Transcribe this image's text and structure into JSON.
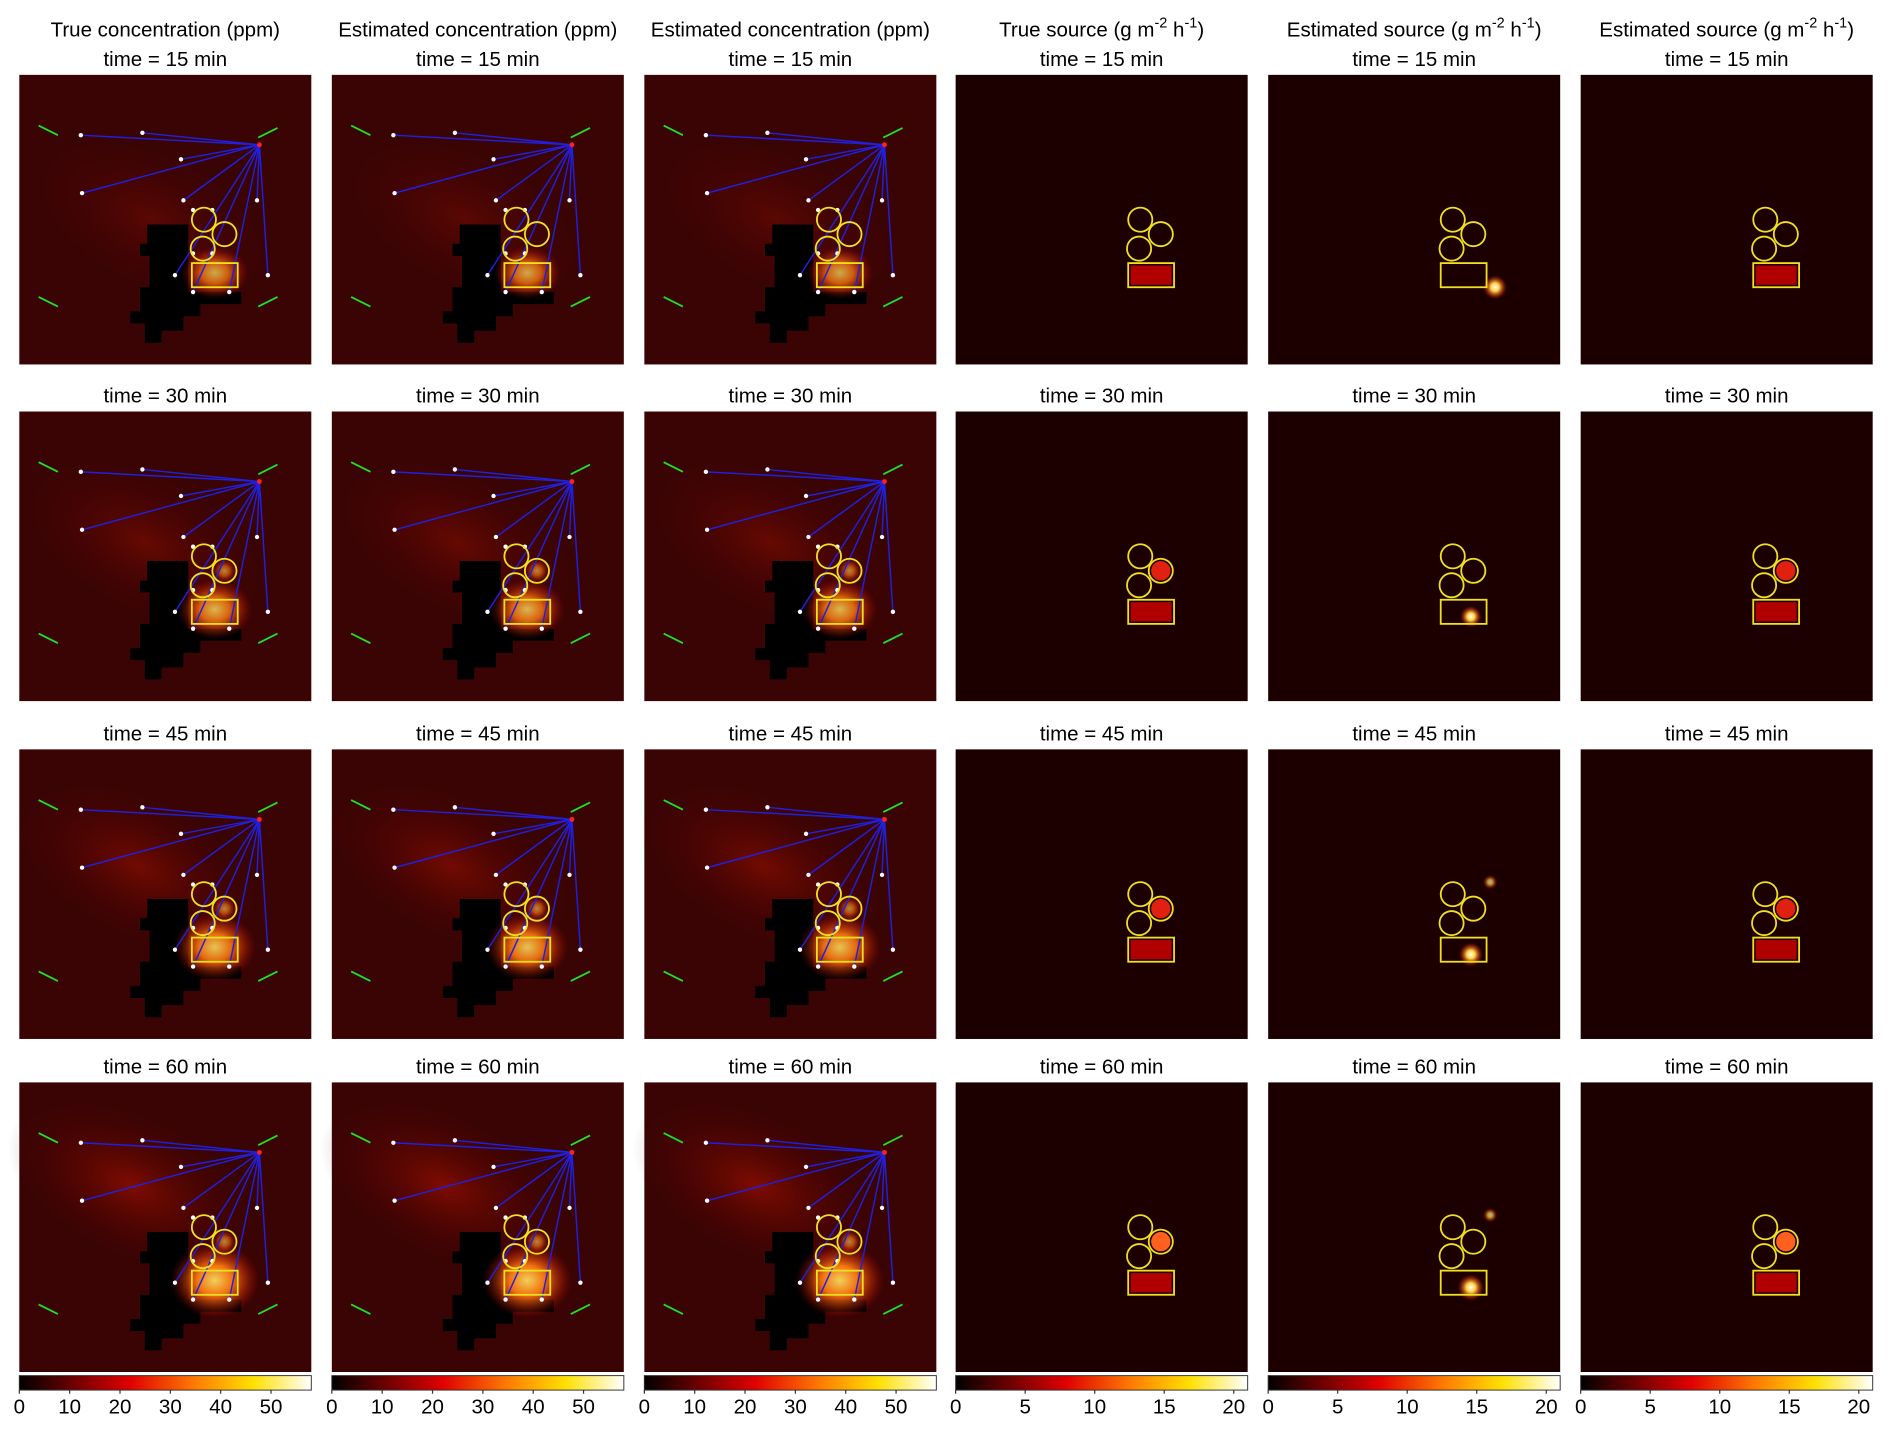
{
  "columns": [
    {
      "title": [
        "True concentration (ppm)"
      ],
      "colorbar": {
        "lim": [
          0,
          58
        ],
        "ticks": [
          0,
          10,
          20,
          30,
          40,
          50
        ]
      }
    },
    {
      "title": [
        "Estimated concentration (ppm)"
      ],
      "colorbar": {
        "lim": [
          0,
          58
        ],
        "ticks": [
          0,
          10,
          20,
          30,
          40,
          50
        ]
      }
    },
    {
      "title": [
        "Estimated concentration (ppm)"
      ],
      "colorbar": {
        "lim": [
          0,
          58
        ],
        "ticks": [
          0,
          10,
          20,
          30,
          40,
          50
        ]
      }
    },
    {
      "title": [
        "True source (g m",
        {
          "sup": "-2"
        },
        " h",
        {
          "sup": "-1"
        },
        ")"
      ],
      "colorbar": {
        "lim": [
          0,
          21
        ],
        "ticks": [
          0,
          5,
          10,
          15,
          20
        ]
      }
    },
    {
      "title": [
        "Estimated source (g m",
        {
          "sup": "-2"
        },
        " h",
        {
          "sup": "-1"
        },
        ")"
      ],
      "colorbar": {
        "lim": [
          0,
          21
        ],
        "ticks": [
          0,
          5,
          10,
          15,
          20
        ]
      }
    },
    {
      "title": [
        "Estimated source (g m",
        {
          "sup": "-2"
        },
        " h",
        {
          "sup": "-1"
        },
        ")"
      ],
      "colorbar": {
        "lim": [
          0,
          21
        ],
        "ticks": [
          0,
          5,
          10,
          15,
          20
        ]
      }
    }
  ],
  "rows": [
    {
      "label": "time = 15 min"
    },
    {
      "label": "time = 30 min"
    },
    {
      "label": "time = 45 min"
    },
    {
      "label": "time = 60 min"
    }
  ]
}
